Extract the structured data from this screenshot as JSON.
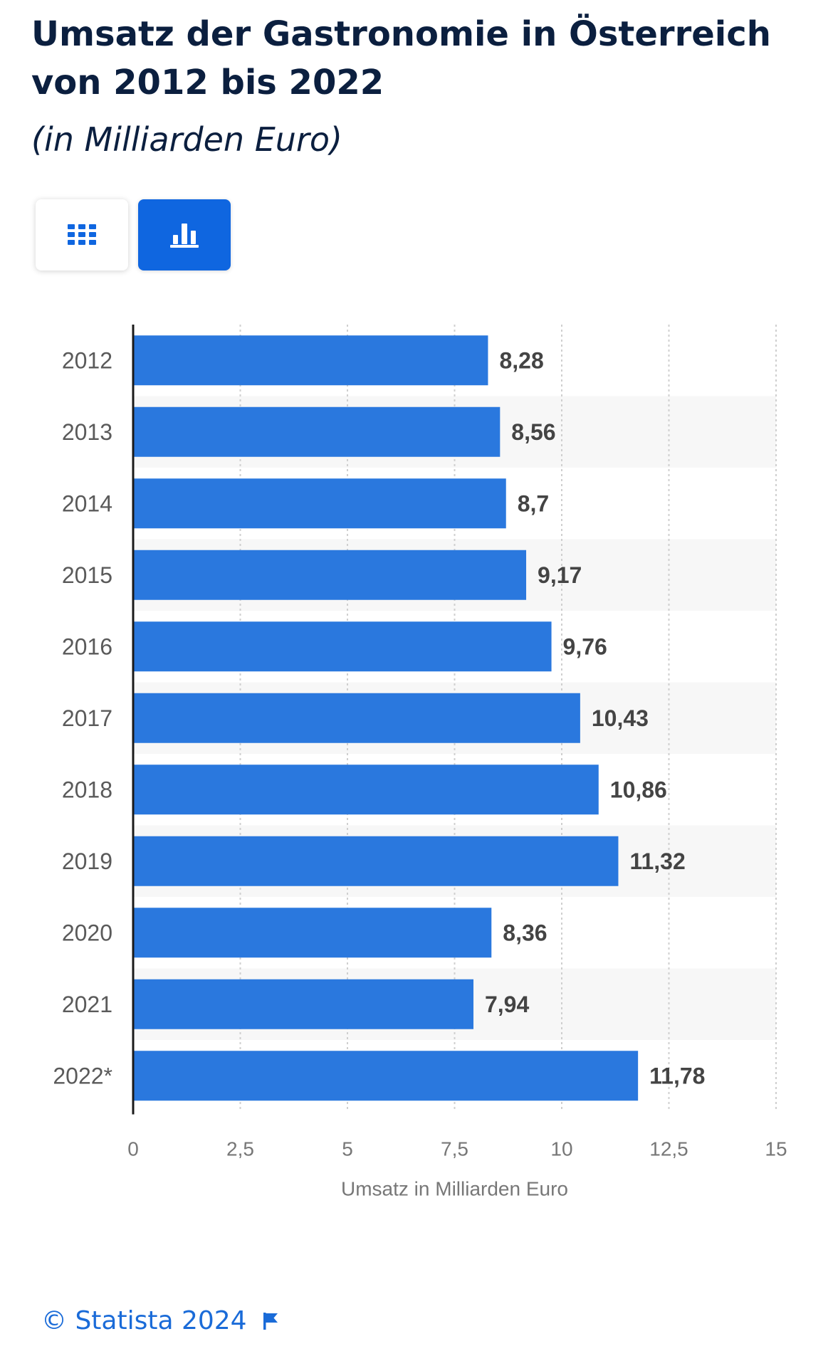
{
  "header": {
    "title": "Umsatz der Gastronomie in Österreich von 2012 bis 2022",
    "subtitle": "(in Milliarden Euro)"
  },
  "toolbar": {
    "table_icon": "grid-icon",
    "chart_icon": "bar-chart-icon",
    "active_view": "chart"
  },
  "colors": {
    "bar": "#2a78de",
    "label": "#444444",
    "axis_text": "#777777",
    "band": "#f7f7f7",
    "accent": "#0f66e0"
  },
  "chart_data": {
    "type": "bar",
    "orientation": "horizontal",
    "categories": [
      "2012",
      "2013",
      "2014",
      "2015",
      "2016",
      "2017",
      "2018",
      "2019",
      "2020",
      "2021",
      "2022*"
    ],
    "values": [
      8.28,
      8.56,
      8.7,
      9.17,
      9.76,
      10.43,
      10.86,
      11.32,
      8.36,
      7.94,
      11.78
    ],
    "value_labels": [
      "8,28",
      "8,56",
      "8,7",
      "9,17",
      "9,76",
      "10,43",
      "10,86",
      "11,32",
      "8,36",
      "7,94",
      "11,78"
    ],
    "xlabel": "Umsatz in Milliarden Euro",
    "ylabel": "",
    "xlim": [
      0,
      15
    ],
    "xticks": [
      0,
      2.5,
      5,
      7.5,
      10,
      12.5,
      15
    ],
    "xtick_labels": [
      "0",
      "2,5",
      "5",
      "7,5",
      "10",
      "12,5",
      "15"
    ],
    "grid": true
  },
  "footer": {
    "copyright": "© Statista 2024",
    "flag_icon": "flag-icon"
  }
}
